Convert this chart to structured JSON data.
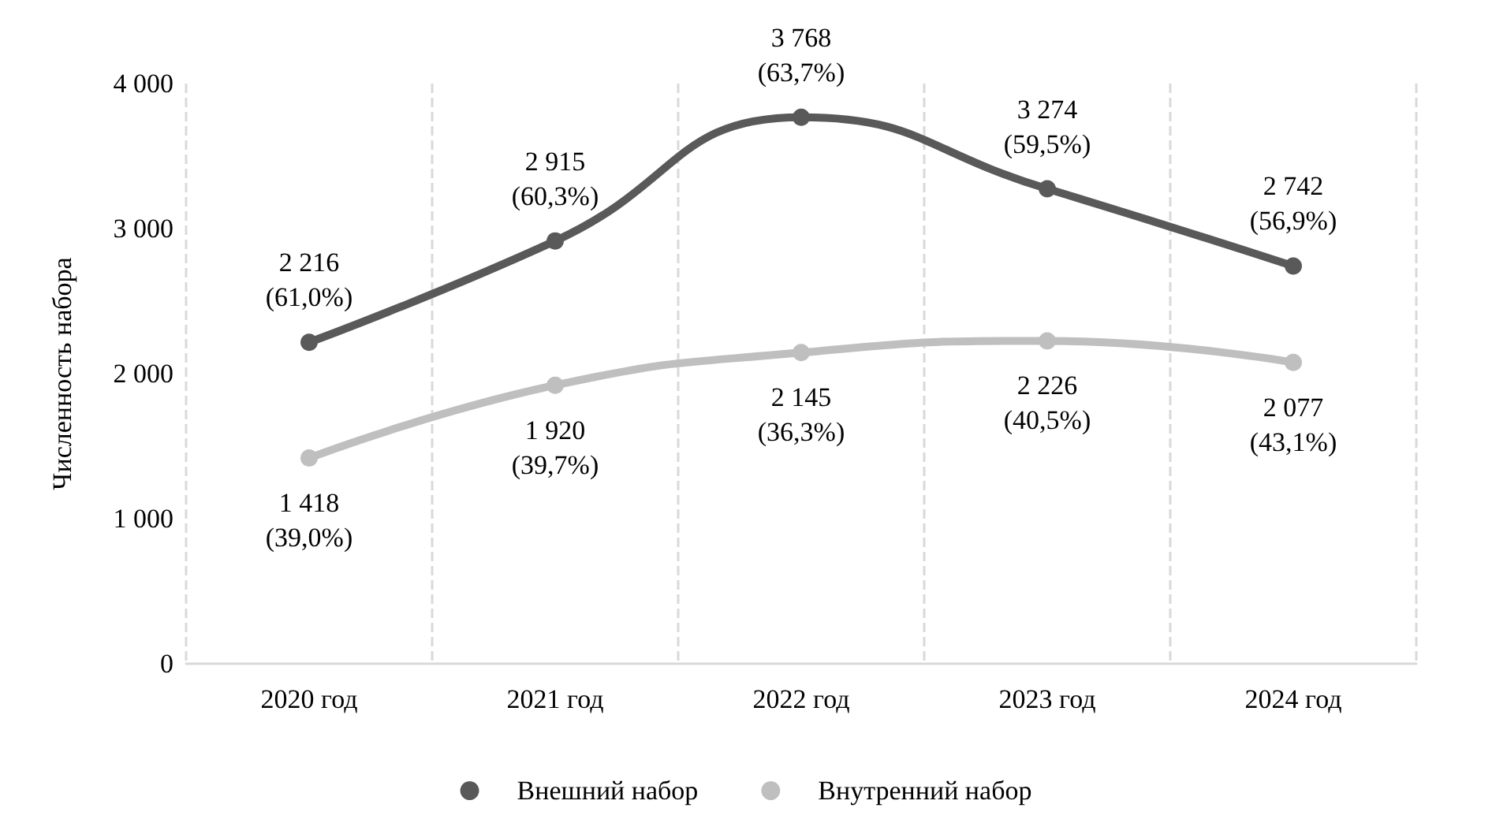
{
  "chart_data": {
    "type": "line",
    "ylabel": "Численность набора",
    "categories": [
      "2020 год",
      "2021 год",
      "2022 год",
      "2023 год",
      "2024 год"
    ],
    "series": [
      {
        "name": "Внешний набор",
        "color": "#595959",
        "values": [
          2216,
          2915,
          3768,
          3274,
          2742
        ],
        "value_labels": [
          "2 216\n(61,0%)",
          "2 915\n(60,3%)",
          "3 768\n(63,7%)",
          "3 274\n(59,5%)",
          "2 742\n(56,9%)"
        ]
      },
      {
        "name": "Внутренний набор",
        "color": "#bfbfbf",
        "values": [
          1418,
          1920,
          2145,
          2226,
          2077
        ],
        "value_labels": [
          "1 418\n(39,0%)",
          "1 920\n(39,7%)",
          "2 145\n(36,3%)",
          "2 226\n(40,5%)",
          "2 077\n(43,1%)"
        ]
      }
    ],
    "ylim": [
      0,
      4000
    ],
    "yticks": [
      {
        "value": 0,
        "label": "0"
      },
      {
        "value": 1000,
        "label": "1 000"
      },
      {
        "value": 2000,
        "label": "2 000"
      },
      {
        "value": 3000,
        "label": "3 000"
      },
      {
        "value": 4000,
        "label": "4 000"
      }
    ],
    "grid": "x",
    "legend": "bottom",
    "marker": "circle",
    "line_style": "solid"
  }
}
